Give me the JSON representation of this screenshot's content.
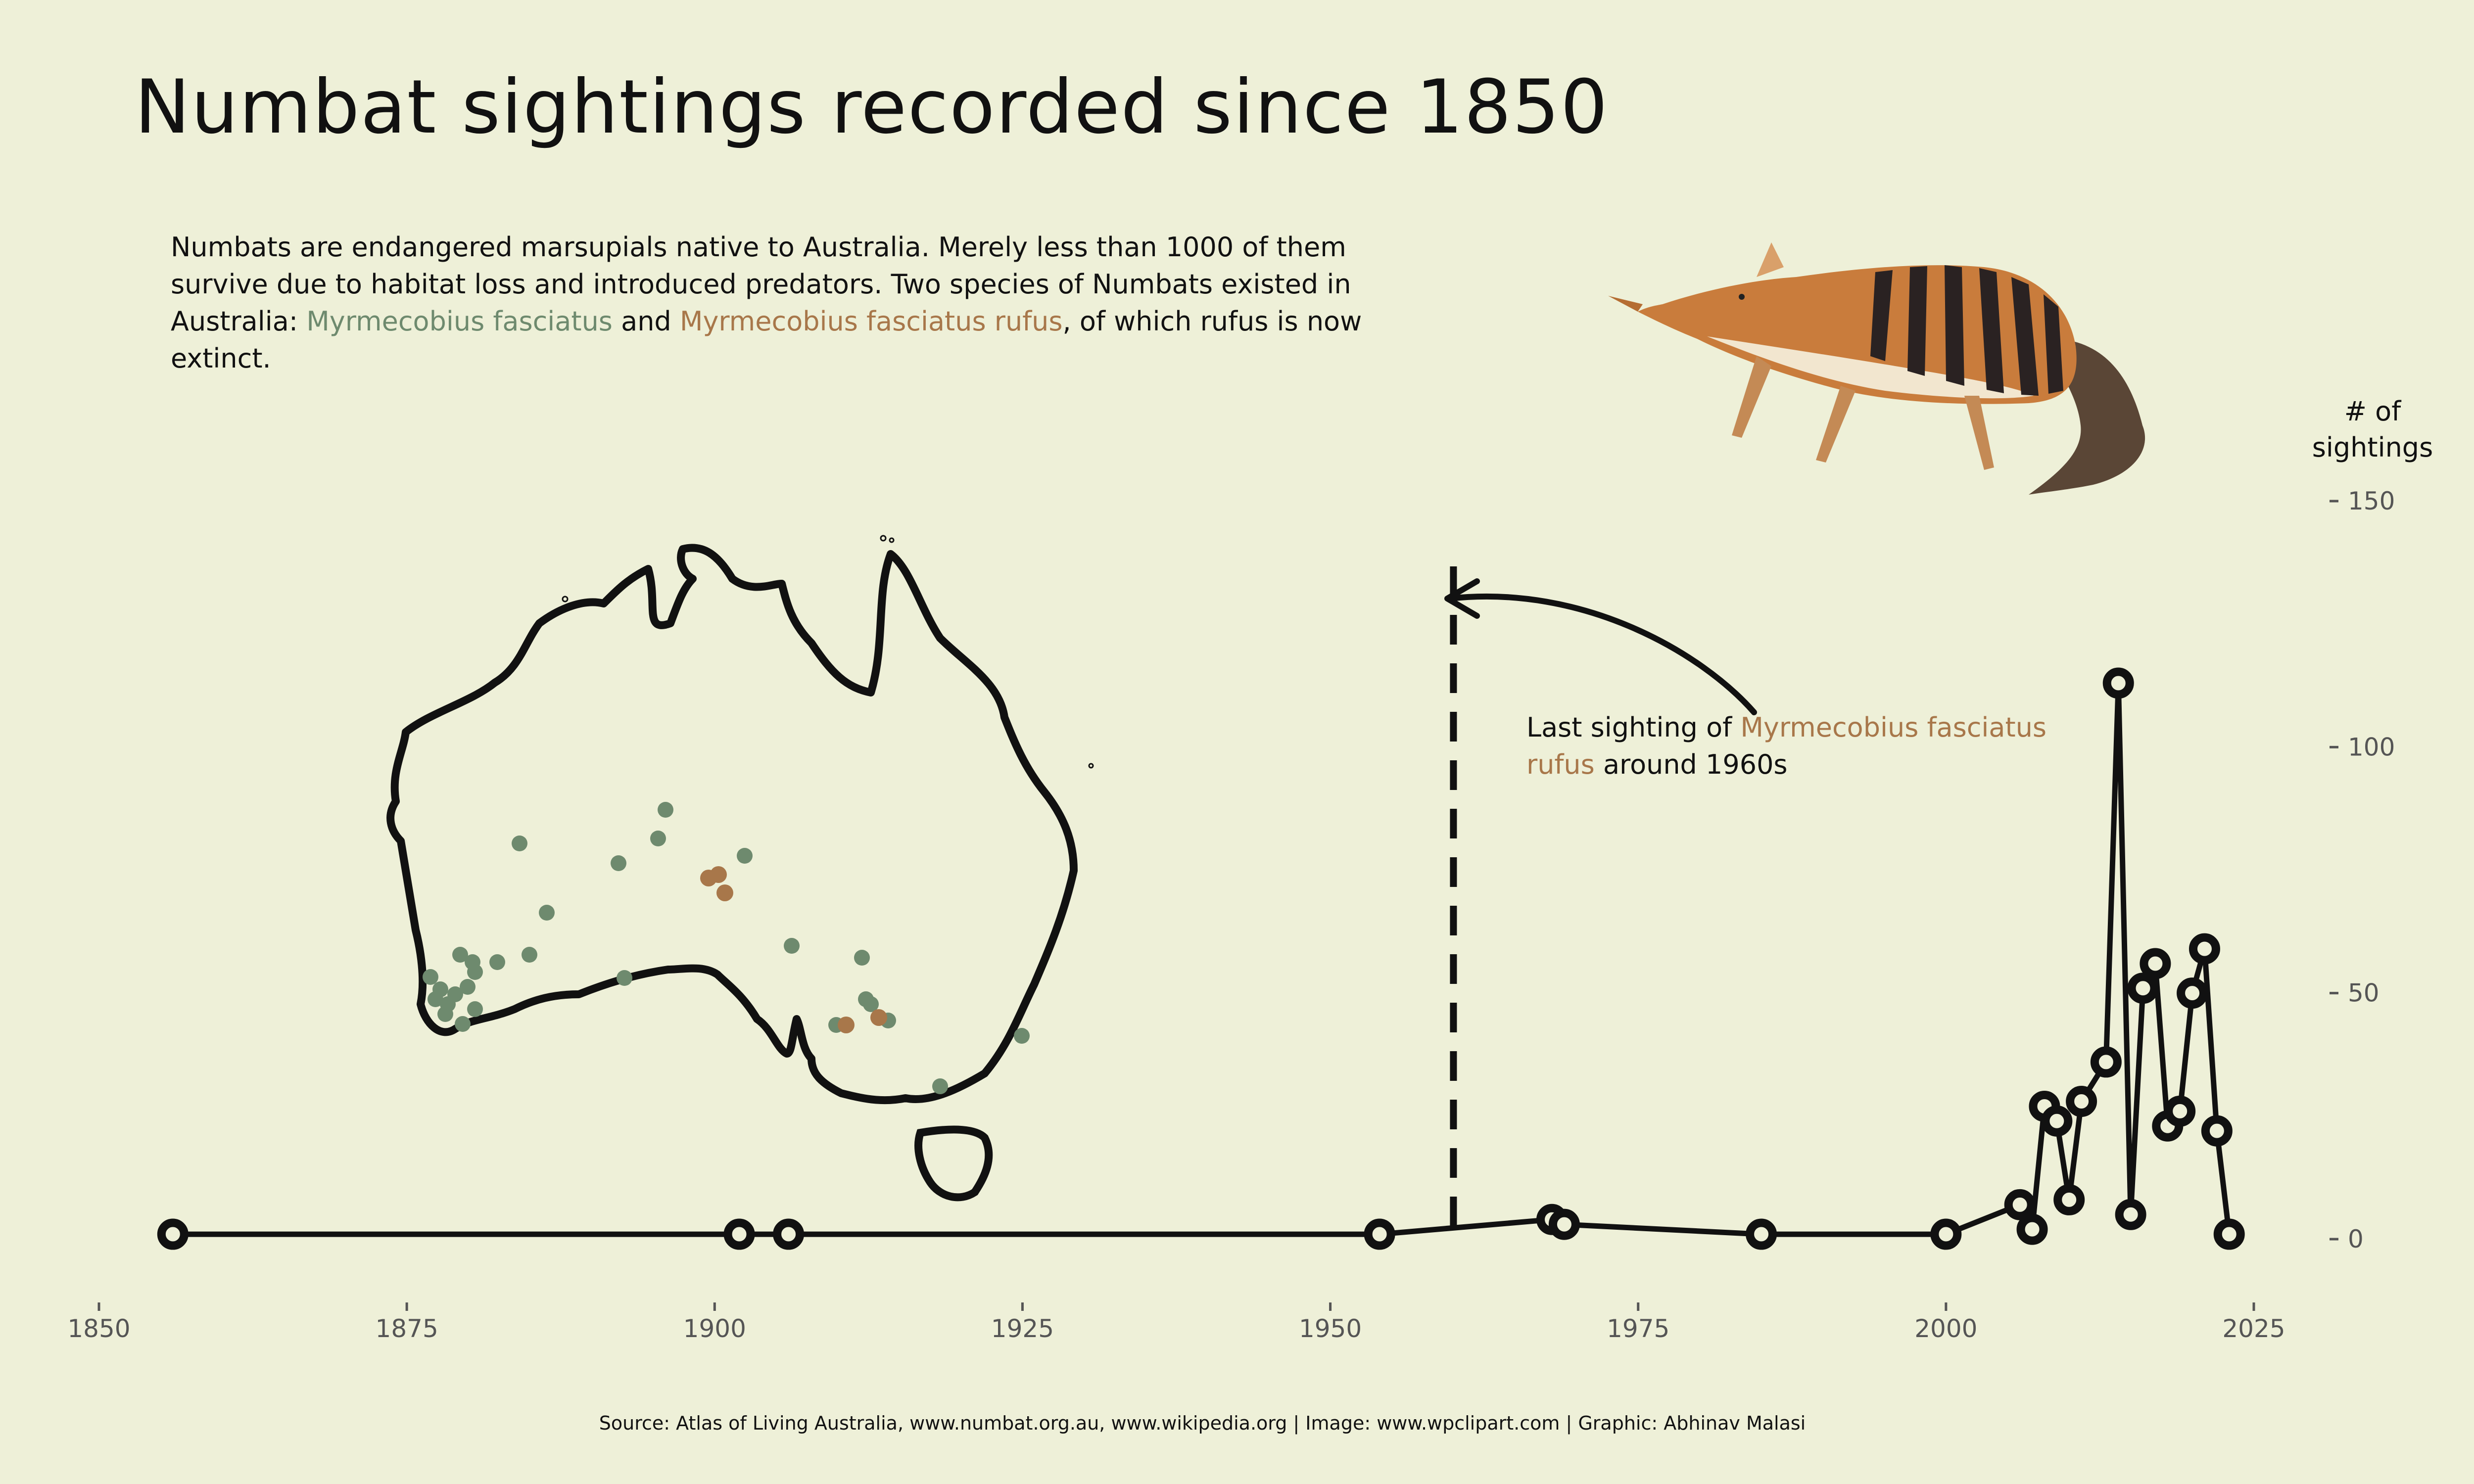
{
  "title": "Numbat sightings recorded since 1850",
  "description": {
    "part1": "Numbats are endangered marsupials native to Australia. Merely less than 1000 of them survive due to habitat loss and introduced predators. Two species of Numbats existed in Australia: ",
    "species1": "Myrmecobius fasciatus",
    "and": " and ",
    "species2": "Myrmecobius fasciatus rufus",
    "part2": ", of which rufus is now extinct."
  },
  "annotation": {
    "prefix": "Last sighting of ",
    "species": "Myrmecobius fasciatus rufus",
    "suffix": " around 1960s"
  },
  "source": "Source: Atlas of Living Australia, www.numbat.org.au, www.wikipedia.org | Image: www.wpclipart.com | Graphic: Abhinav Malasi",
  "colors": {
    "background": "#EEF0D8",
    "fasciatus": "#6E8A6E",
    "rufus": "#A8774A",
    "line": "#111111"
  },
  "chart_data": {
    "type": "line",
    "title": "Numbat sightings recorded since 1850",
    "xlabel": "",
    "ylabel": "# of sightings",
    "xlim": [
      1850,
      2025
    ],
    "ylim": [
      0,
      150
    ],
    "x_ticks": [
      "1850",
      "1875",
      "1900",
      "1925",
      "1950",
      "1975",
      "2000",
      "2025"
    ],
    "y_ticks": [
      "0",
      "50",
      "100",
      "150"
    ],
    "marker": "ring",
    "grid": false,
    "reference_line": {
      "x": 1960,
      "style": "dashed"
    },
    "points": [
      {
        "x": 1856,
        "y": 1
      },
      {
        "x": 1902,
        "y": 1
      },
      {
        "x": 1906,
        "y": 1
      },
      {
        "x": 1954,
        "y": 1
      },
      {
        "x": 1968,
        "y": 4
      },
      {
        "x": 1969,
        "y": 3
      },
      {
        "x": 1985,
        "y": 1
      },
      {
        "x": 2000,
        "y": 1
      },
      {
        "x": 2006,
        "y": 7
      },
      {
        "x": 2007,
        "y": 2
      },
      {
        "x": 2008,
        "y": 27
      },
      {
        "x": 2009,
        "y": 24
      },
      {
        "x": 2010,
        "y": 8
      },
      {
        "x": 2011,
        "y": 28
      },
      {
        "x": 2013,
        "y": 36
      },
      {
        "x": 2014,
        "y": 113
      },
      {
        "x": 2015,
        "y": 5
      },
      {
        "x": 2016,
        "y": 51
      },
      {
        "x": 2017,
        "y": 56
      },
      {
        "x": 2018,
        "y": 23
      },
      {
        "x": 2019,
        "y": 26
      },
      {
        "x": 2020,
        "y": 50
      },
      {
        "x": 2021,
        "y": 59
      },
      {
        "x": 2022,
        "y": 22
      },
      {
        "x": 2023,
        "y": 1
      }
    ]
  }
}
